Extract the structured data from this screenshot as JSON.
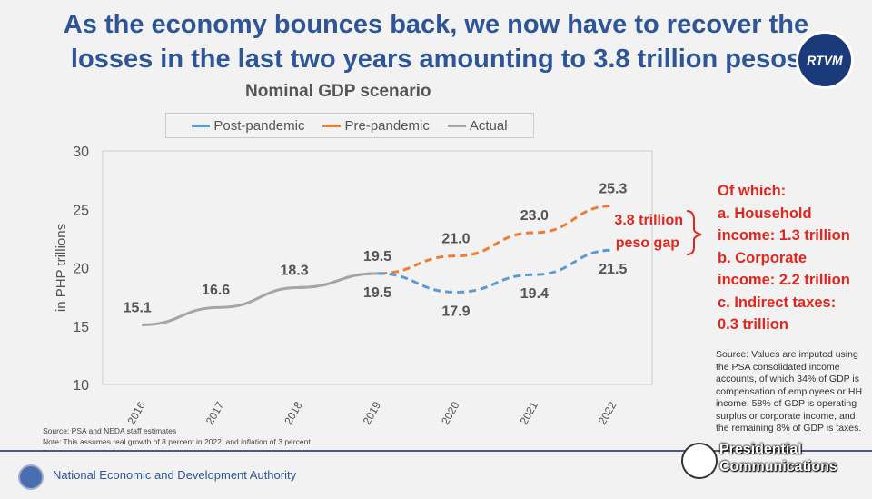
{
  "title_line1": "As the economy bounces back, we now have to recover the",
  "title_line2": "losses in the last two years amounting to 3.8 trillion pesos",
  "broadcaster_logo": "RTVM",
  "chart_data": {
    "type": "line",
    "title": "Nominal GDP scenario",
    "ylabel": "in PHP trillions",
    "xlabel": "",
    "ylim": [
      10,
      30
    ],
    "yticks": [
      "10",
      "15",
      "20",
      "25",
      "30"
    ],
    "categories": [
      "2016",
      "2017",
      "2018",
      "2019",
      "2020",
      "2021",
      "2022"
    ],
    "legend_position": "top",
    "series": [
      {
        "name": "Post-pandemic",
        "color": "#5b9bd5",
        "dashed": true,
        "x": [
          "2019",
          "2020",
          "2021",
          "2022"
        ],
        "values": [
          19.5,
          17.9,
          19.4,
          21.5
        ],
        "labels": [
          "19.5",
          "17.9",
          "19.4",
          "21.5"
        ]
      },
      {
        "name": "Pre-pandemic",
        "color": "#ed7d31",
        "dashed": true,
        "x": [
          "2018",
          "2019",
          "2020",
          "2021",
          "2022"
        ],
        "values": [
          18.3,
          19.5,
          21.0,
          23.0,
          25.3
        ],
        "labels": [
          "",
          "19.5",
          "21.0",
          "23.0",
          "25.3"
        ]
      },
      {
        "name": "Actual",
        "color": "#a5a5a5",
        "dashed": false,
        "x": [
          "2016",
          "2017",
          "2018",
          "2019"
        ],
        "values": [
          15.1,
          16.6,
          18.3,
          19.5
        ],
        "labels": [
          "15.1",
          "16.6",
          "18.3",
          ""
        ]
      }
    ],
    "annotation": "3.8 trillion peso gap"
  },
  "side": {
    "lines": [
      "Of which:",
      "a. Household",
      "income: 1.3 trillion",
      "b. Corporate",
      "income: 2.2 trillion",
      "c. Indirect taxes:",
      "0.3 trillion"
    ]
  },
  "side_source": "Source: Values are imputed using the PSA consolidated income accounts, of which 34% of GDP is compensation of employees or HH income, 58% of GDP is operating surplus or corporate income, and the remaining 8% of GDP is taxes.",
  "source": "Source: PSA and NEDA staff estimates",
  "note": "Note: This assumes real growth of 8 percent in 2022, and inflation of 3 percent.",
  "footer": "National Economic and Development Authority",
  "watermark": [
    "Presidential",
    "Communications"
  ]
}
